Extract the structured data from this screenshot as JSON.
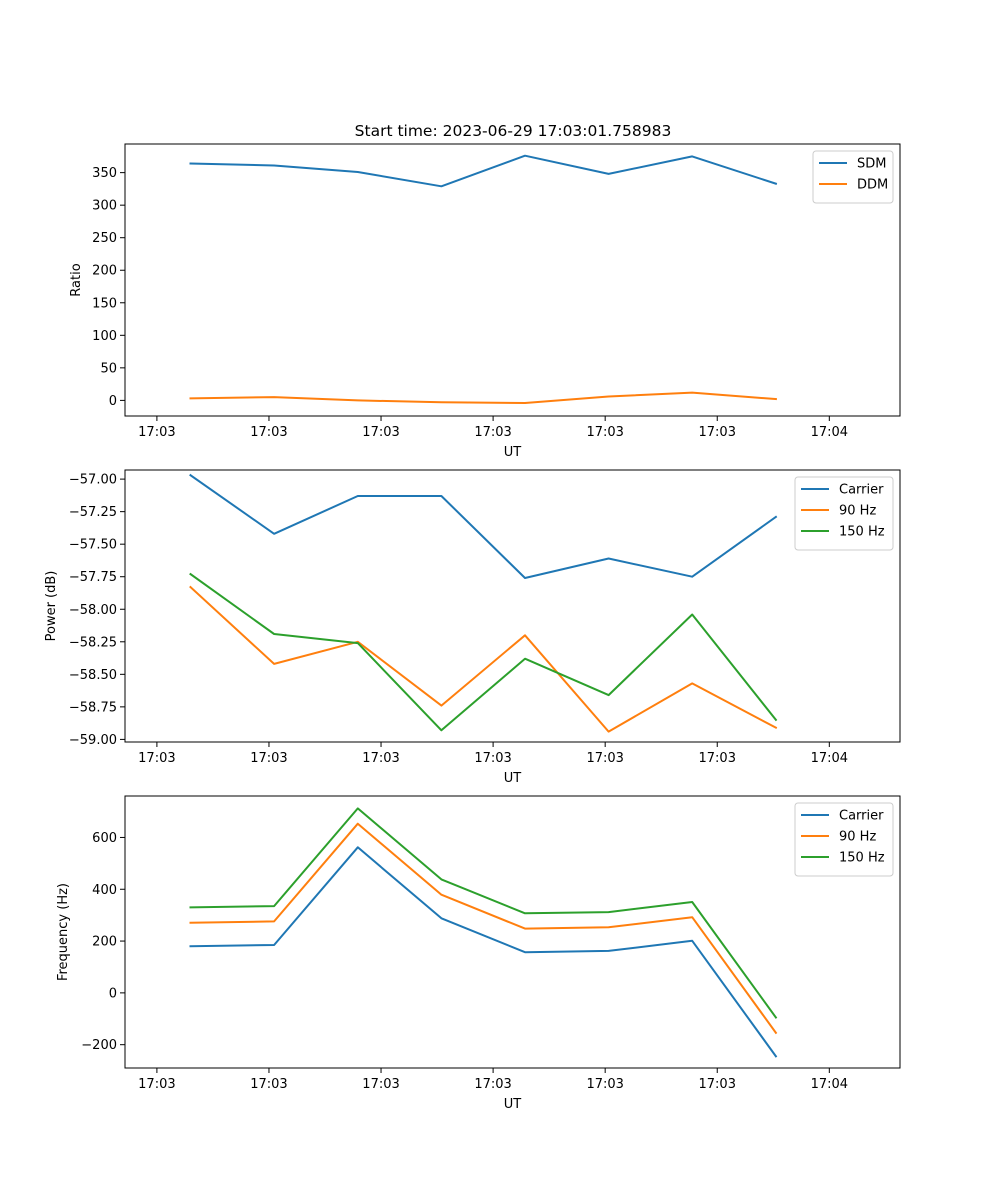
{
  "title": "Start time: 2023-06-29 17:03:01.758983",
  "chart_data": [
    {
      "type": "line",
      "title": "Start time: 2023-06-29 17:03:01.758983",
      "xlabel": "UT",
      "ylabel": "Ratio",
      "x_tick_labels": [
        "17:03",
        "17:03",
        "17:03",
        "17:03",
        "17:03",
        "17:03",
        "17:04"
      ],
      "xlim": [
        -0.37,
        8.62
      ],
      "x": [
        0.39,
        1.36,
        2.33,
        3.3,
        4.27,
        5.24,
        6.21,
        7.18
      ],
      "ylim": [
        -24,
        394
      ],
      "y_ticks": [
        0,
        50,
        100,
        150,
        200,
        250,
        300,
        350
      ],
      "grid": false,
      "legend_position": "upper right",
      "series": [
        {
          "name": "SDM",
          "color": "#1f77b4",
          "values": [
            364,
            361,
            351,
            329,
            376,
            348,
            375,
            333
          ]
        },
        {
          "name": "DDM",
          "color": "#ff7f0e",
          "values": [
            3,
            5,
            0,
            -3,
            -4,
            6,
            12,
            2
          ]
        }
      ]
    },
    {
      "type": "line",
      "title": "",
      "xlabel": "UT",
      "ylabel": "Power (dB)",
      "x_tick_labels": [
        "17:03",
        "17:03",
        "17:03",
        "17:03",
        "17:03",
        "17:03",
        "17:04"
      ],
      "xlim": [
        -0.37,
        8.62
      ],
      "x": [
        0.39,
        1.36,
        2.33,
        3.3,
        4.27,
        5.24,
        6.21,
        7.18
      ],
      "ylim": [
        -59.02,
        -56.93
      ],
      "y_ticks": [
        -59.0,
        -58.75,
        -58.5,
        -58.25,
        -58.0,
        -57.75,
        -57.5,
        -57.25,
        -57.0
      ],
      "y_tick_labels": [
        "−59.00",
        "−58.75",
        "−58.50",
        "−58.25",
        "−58.00",
        "−57.75",
        "−57.50",
        "−57.25",
        "−57.00"
      ],
      "grid": false,
      "legend_position": "upper right",
      "series": [
        {
          "name": "Carrier",
          "color": "#1f77b4",
          "values": [
            -56.97,
            -57.42,
            -57.13,
            -57.13,
            -57.76,
            -57.61,
            -57.75,
            -57.29
          ]
        },
        {
          "name": "90 Hz",
          "color": "#ff7f0e",
          "values": [
            -57.83,
            -58.42,
            -58.25,
            -58.74,
            -58.2,
            -58.94,
            -58.57,
            -58.91
          ]
        },
        {
          "name": "150 Hz",
          "color": "#2ca02c",
          "values": [
            -57.73,
            -58.19,
            -58.26,
            -58.93,
            -58.38,
            -58.66,
            -58.04,
            -58.85
          ]
        }
      ]
    },
    {
      "type": "line",
      "title": "",
      "xlabel": "UT",
      "ylabel": "Frequency (Hz)",
      "x_tick_labels": [
        "17:03",
        "17:03",
        "17:03",
        "17:03",
        "17:03",
        "17:03",
        "17:04"
      ],
      "xlim": [
        -0.37,
        8.62
      ],
      "x": [
        0.39,
        1.36,
        2.33,
        3.3,
        4.27,
        5.24,
        6.21,
        7.18
      ],
      "ylim": [
        -290,
        760
      ],
      "y_ticks": [
        -200,
        0,
        200,
        400,
        600
      ],
      "y_tick_labels": [
        "−200",
        "0",
        "200",
        "400",
        "600"
      ],
      "grid": false,
      "legend_position": "upper right",
      "series": [
        {
          "name": "Carrier",
          "color": "#1f77b4",
          "values": [
            180,
            185,
            562,
            288,
            157,
            162,
            201,
            -245
          ]
        },
        {
          "name": "90 Hz",
          "color": "#ff7f0e",
          "values": [
            271,
            276,
            653,
            379,
            248,
            253,
            292,
            -154
          ]
        },
        {
          "name": "150 Hz",
          "color": "#2ca02c",
          "values": [
            330,
            335,
            712,
            438,
            307,
            312,
            351,
            -95
          ]
        }
      ]
    }
  ]
}
